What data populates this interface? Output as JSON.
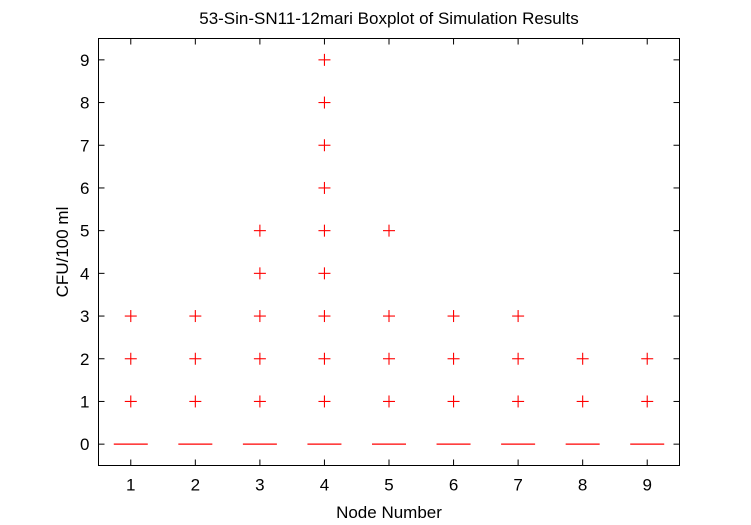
{
  "chart_data": {
    "type": "boxplot",
    "title": "53-Sin-SN11-12mari Boxplot of Simulation Results",
    "xlabel": "Node Number",
    "ylabel": "CFU/100 ml",
    "xlim": [
      0.5,
      9.5
    ],
    "ylim": [
      -0.5,
      9.5
    ],
    "xticks": [
      "1",
      "2",
      "3",
      "4",
      "5",
      "6",
      "7",
      "8",
      "9"
    ],
    "yticks": [
      "0",
      "1",
      "2",
      "3",
      "4",
      "5",
      "6",
      "7",
      "8",
      "9"
    ],
    "grid": false,
    "median_color": "#ff0000",
    "outlier_color": "#ff0000",
    "series": [
      {
        "node": 1,
        "median": 0,
        "outliers": [
          1,
          2,
          3
        ]
      },
      {
        "node": 2,
        "median": 0,
        "outliers": [
          1,
          2,
          3
        ]
      },
      {
        "node": 3,
        "median": 0,
        "outliers": [
          1,
          2,
          3,
          4,
          5
        ]
      },
      {
        "node": 4,
        "median": 0,
        "outliers": [
          1,
          2,
          3,
          4,
          5,
          6,
          7,
          8,
          9
        ]
      },
      {
        "node": 5,
        "median": 0,
        "outliers": [
          1,
          2,
          3,
          5
        ]
      },
      {
        "node": 6,
        "median": 0,
        "outliers": [
          1,
          2,
          3
        ]
      },
      {
        "node": 7,
        "median": 0,
        "outliers": [
          1,
          2,
          3
        ]
      },
      {
        "node": 8,
        "median": 0,
        "outliers": [
          1,
          2
        ]
      },
      {
        "node": 9,
        "median": 0,
        "outliers": [
          1,
          2
        ]
      }
    ]
  }
}
